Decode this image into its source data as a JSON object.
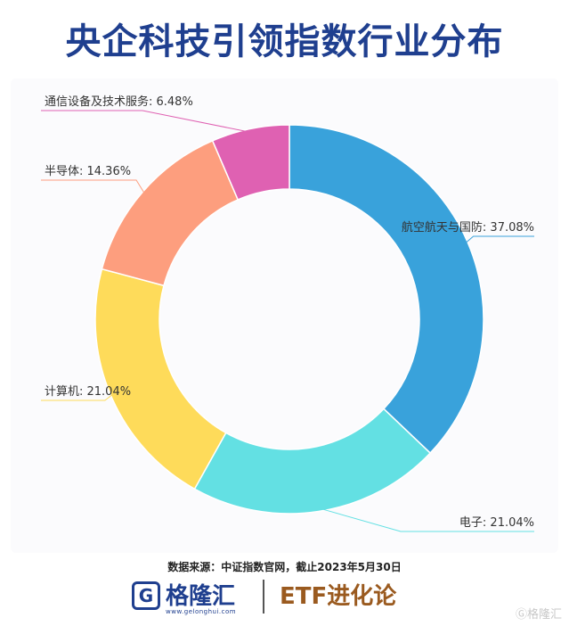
{
  "title": "央企科技引领指数行业分布",
  "source": "数据来源：中证指数官网，截止2023年5月30日",
  "brand": {
    "logo_mark": "G",
    "logo_text": "格隆汇",
    "logo_url": "www.gelonghui.com",
    "etf_text": "ETF进化论",
    "watermark": "Ⓖ格隆汇"
  },
  "chart_data": {
    "type": "pie",
    "donut": true,
    "slices": [
      {
        "name": "航空航天与国防",
        "value": 37.08,
        "label": "航空航天与国防: 37.08%",
        "color": "#39a2db"
      },
      {
        "name": "电子",
        "value": 21.04,
        "label": "电子: 21.04%",
        "color": "#63e0e3"
      },
      {
        "name": "计算机",
        "value": 21.04,
        "label": "计算机: 21.04%",
        "color": "#fedb5a"
      },
      {
        "name": "半导体",
        "value": 14.36,
        "label": "半导体: 14.36%",
        "color": "#fd9e7e"
      },
      {
        "name": "通信设备及技术服务",
        "value": 6.48,
        "label": "通信设备及技术服务: 6.48%",
        "color": "#df61b2"
      }
    ]
  }
}
